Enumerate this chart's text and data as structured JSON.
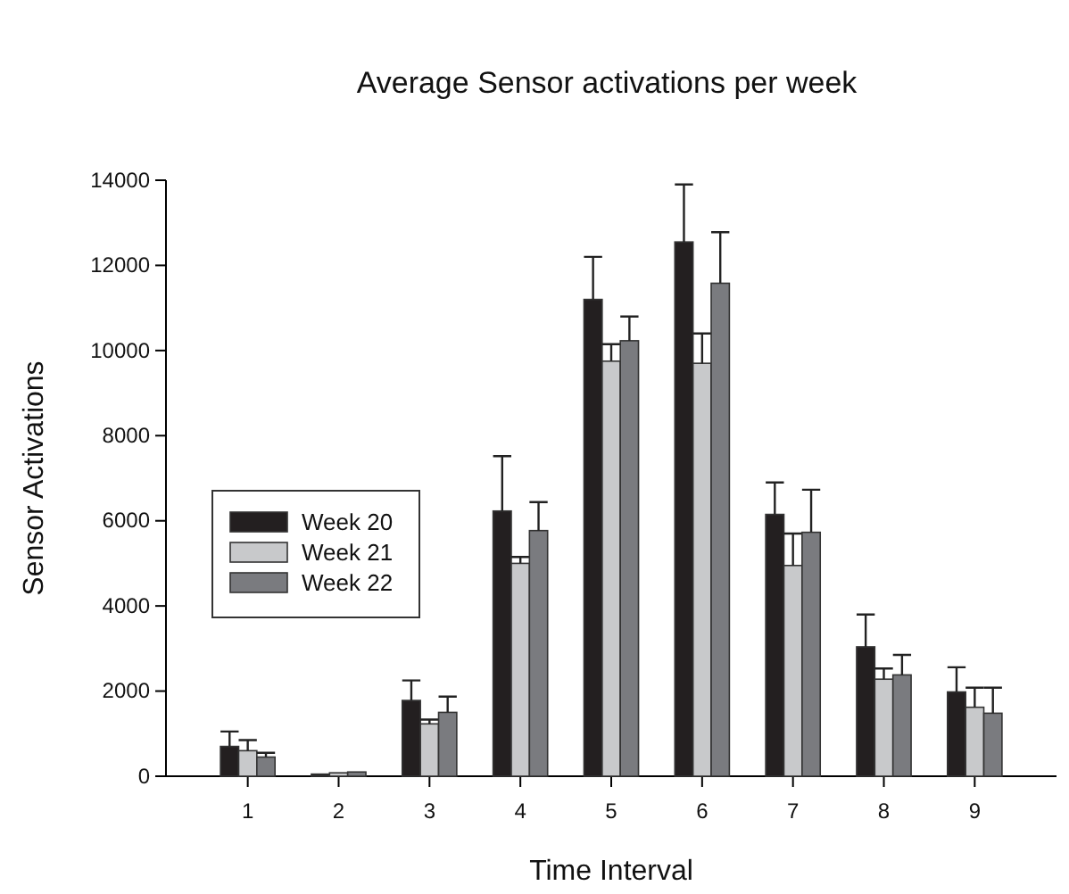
{
  "chart_data": {
    "type": "bar",
    "title": "Average Sensor activations per week",
    "xlabel": "Time Interval",
    "ylabel": "Sensor Activations",
    "categories": [
      "1",
      "2",
      "3",
      "4",
      "5",
      "6",
      "7",
      "8",
      "9"
    ],
    "series": [
      {
        "name": "Week 20",
        "color": "#231f20",
        "values": [
          700,
          50,
          1780,
          6230,
          11200,
          12550,
          6150,
          3040,
          1980
        ],
        "errors": [
          [
            700,
            1050
          ],
          null,
          [
            1780,
            2250
          ],
          [
            6230,
            7520
          ],
          [
            11200,
            12200
          ],
          [
            12550,
            13900
          ],
          [
            6150,
            6900
          ],
          [
            3040,
            3800
          ],
          [
            1980,
            2560
          ]
        ]
      },
      {
        "name": "Week 21",
        "color": "#c8c9cb",
        "values": [
          600,
          80,
          1230,
          5000,
          9750,
          9700,
          4950,
          2280,
          1620
        ],
        "errors": [
          [
            600,
            850
          ],
          null,
          [
            1230,
            1330
          ],
          [
            5000,
            5150
          ],
          [
            9750,
            10150
          ],
          [
            9700,
            10400
          ],
          [
            4950,
            5700
          ],
          [
            2280,
            2530
          ],
          [
            1620,
            2080
          ]
        ]
      },
      {
        "name": "Week 22",
        "color": "#7a7b7f",
        "values": [
          450,
          100,
          1500,
          5770,
          10230,
          11580,
          5730,
          2380,
          1480
        ],
        "errors": [
          [
            450,
            550
          ],
          null,
          [
            1500,
            1870
          ],
          [
            5770,
            6440
          ],
          [
            10230,
            10800
          ],
          [
            11580,
            12780
          ],
          [
            5730,
            6730
          ],
          [
            2380,
            2850
          ],
          [
            1480,
            2080
          ]
        ]
      }
    ],
    "ylim": [
      0,
      14000
    ],
    "yticks": [
      0,
      2000,
      4000,
      6000,
      8000,
      10000,
      12000,
      14000
    ],
    "grid": false,
    "legend": "left"
  }
}
